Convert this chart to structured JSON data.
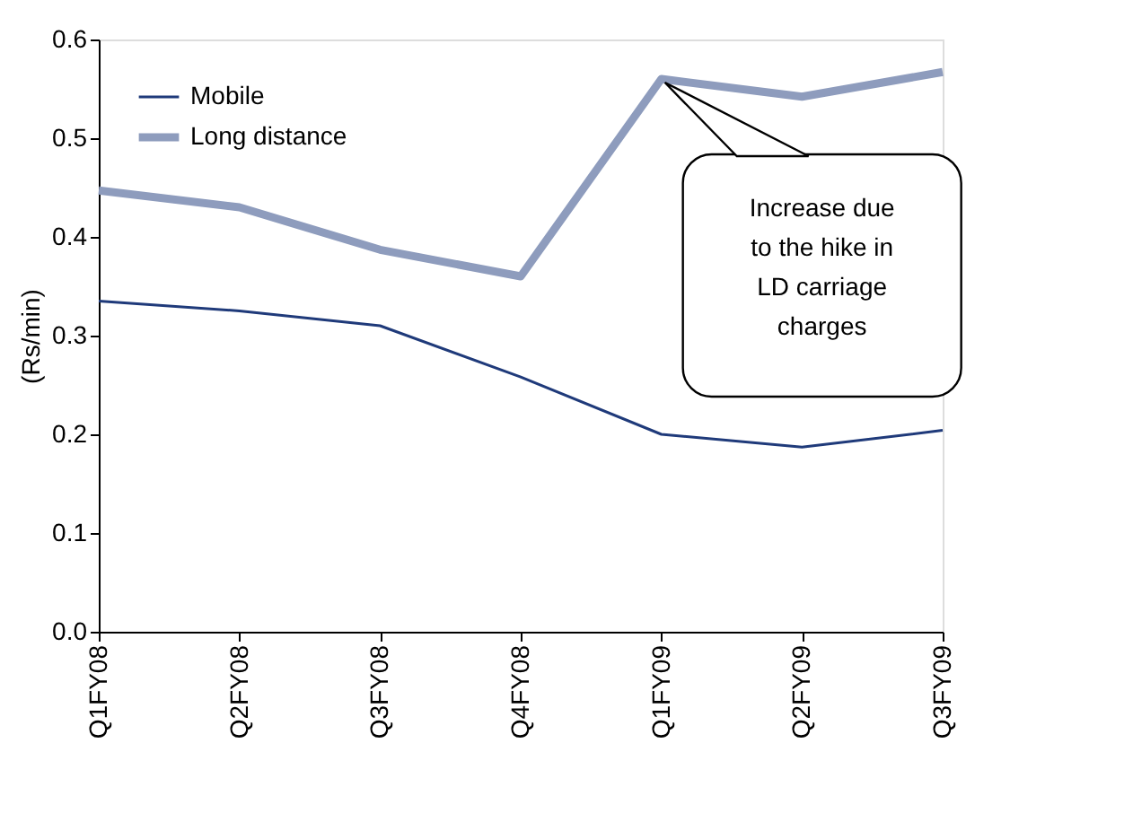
{
  "chart_data": {
    "type": "line",
    "ylabel": "(Rs/min)",
    "categories": [
      "Q1FY08",
      "Q2FY08",
      "Q3FY08",
      "Q4FY08",
      "Q1FY09",
      "Q2FY09",
      "Q3FY09"
    ],
    "series": [
      {
        "name": "Mobile",
        "color": "#1f3a7a",
        "values": [
          0.335,
          0.325,
          0.31,
          0.258,
          0.2,
          0.187,
          0.204
        ]
      },
      {
        "name": "Long distance",
        "color": "#8e9cbd",
        "values": [
          0.447,
          0.43,
          0.387,
          0.36,
          0.56,
          0.542,
          0.567
        ]
      }
    ],
    "ylim": [
      0,
      0.6
    ],
    "yticks": [
      {
        "value": 0,
        "label": "0.0"
      },
      0.1,
      0.2,
      0.3,
      0.4,
      0.5,
      0.6
    ],
    "grid": false,
    "legend": "top left",
    "marker": "none",
    "line_style": "solid",
    "annotations": [
      "Increase due to the hike in LD carriage charges"
    ]
  }
}
